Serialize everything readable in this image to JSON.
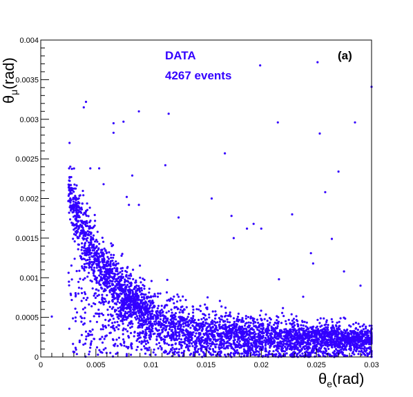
{
  "chart_data": {
    "type": "scatter",
    "title": "",
    "xlabel": "θe(rad)",
    "xlabel_symbol": "θ",
    "xlabel_sub": "e",
    "xlabel_unit": "(rad)",
    "ylabel": "θμ(rad)",
    "ylabel_symbol": "θ",
    "ylabel_sub": "μ",
    "ylabel_unit": "(rad)",
    "xlim": [
      0,
      0.03
    ],
    "ylim": [
      0,
      0.004
    ],
    "xticks": [
      "0",
      "0.005",
      "0.01",
      "0.015",
      "0.02",
      "0.025",
      "0.03"
    ],
    "yticks": [
      "0",
      "0.0005",
      "0.001",
      "0.0015",
      "0.002",
      "0.0025",
      "0.003",
      "0.0035",
      "0.004"
    ],
    "annotations": {
      "line1": "DATA",
      "line2": "4267 events",
      "panel": "(a)"
    },
    "marker_color": "#3300ff",
    "grid": false,
    "num_events": 4267,
    "outliers": [
      [
        0.001,
        0.00051
      ],
      [
        0.0039,
        0.00315
      ],
      [
        0.0041,
        0.00322
      ],
      [
        0.0066,
        0.00295
      ],
      [
        0.0066,
        0.00283
      ],
      [
        0.0075,
        0.00297
      ],
      [
        0.0089,
        0.0031
      ],
      [
        0.0116,
        0.00307
      ],
      [
        0.0045,
        0.00238
      ],
      [
        0.0053,
        0.00238
      ],
      [
        0.0078,
        0.00202
      ],
      [
        0.008,
        0.00192
      ],
      [
        0.0083,
        0.00229
      ],
      [
        0.0089,
        0.00192
      ],
      [
        0.0057,
        0.00218
      ],
      [
        0.0113,
        0.00242
      ],
      [
        0.0125,
        0.00176
      ],
      [
        0.0155,
        0.002
      ],
      [
        0.0167,
        0.00257
      ],
      [
        0.0173,
        0.00178
      ],
      [
        0.0175,
        0.0015
      ],
      [
        0.0187,
        0.00162
      ],
      [
        0.0193,
        0.00168
      ],
      [
        0.02,
        0.00162
      ],
      [
        0.0199,
        0.00368
      ],
      [
        0.0215,
        0.00296
      ],
      [
        0.0251,
        0.00372
      ],
      [
        0.0253,
        0.00282
      ],
      [
        0.0258,
        0.00208
      ],
      [
        0.0264,
        0.00149
      ],
      [
        0.027,
        0.00234
      ],
      [
        0.0285,
        0.00296
      ],
      [
        0.03,
        0.00341
      ],
      [
        0.0245,
        0.00131
      ],
      [
        0.0247,
        0.00118
      ],
      [
        0.0228,
        0.0018
      ],
      [
        0.0275,
        0.00108
      ],
      [
        0.029,
        0.0009
      ],
      [
        0.0216,
        0.00098
      ],
      [
        0.0238,
        0.00076
      ]
    ]
  }
}
